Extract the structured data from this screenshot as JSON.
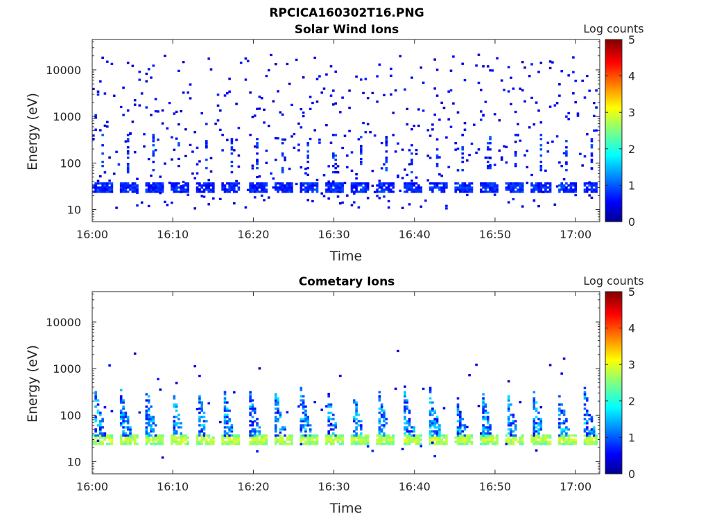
{
  "figure_title": "RPCICA160302T16.PNG",
  "chart_data": [
    {
      "type": "heatmap",
      "title": "Solar Wind Ions",
      "xlabel": "Time",
      "ylabel": "Energy (eV)",
      "y_scale": "log",
      "ylim": [
        5.5,
        45000
      ],
      "xlim": [
        "16:00",
        "17:03"
      ],
      "x_ticks": [
        "16:00",
        "16:10",
        "16:20",
        "16:30",
        "16:40",
        "16:50",
        "17:00"
      ],
      "y_ticks": [
        "10",
        "100",
        "1000",
        "10000"
      ],
      "colorbar": {
        "label": "Log counts",
        "range": [
          0,
          5
        ],
        "ticks": [
          "0",
          "1",
          "2",
          "3",
          "4",
          "5"
        ],
        "colormap": "jet"
      },
      "pattern": {
        "band_energy_center": 28,
        "band_log_counts": 0.8,
        "sweep_period_min": 3.2,
        "background": "sparse single counts (log counts ~0.3-0.8) scattered across 10-20000 eV",
        "seed": 7
      }
    },
    {
      "type": "heatmap",
      "title": "Cometary Ions",
      "xlabel": "Time",
      "ylabel": "Energy (eV)",
      "y_scale": "log",
      "ylim": [
        5.5,
        45000
      ],
      "xlim": [
        "16:00",
        "17:03"
      ],
      "x_ticks": [
        "16:00",
        "16:10",
        "16:20",
        "16:30",
        "16:40",
        "16:50",
        "17:00"
      ],
      "y_ticks": [
        "10",
        "100",
        "1000",
        "10000"
      ],
      "colorbar": {
        "label": "Log counts",
        "range": [
          0,
          5
        ],
        "ticks": [
          "0",
          "1",
          "2",
          "3",
          "4",
          "5"
        ],
        "colormap": "jet"
      },
      "pattern": {
        "band_energy_center": 28,
        "band_log_counts": 2.3,
        "sweep_period_min": 3.2,
        "plume_max_energy": 400,
        "background": "sparse single counts up to ~2500 eV",
        "seed": 13
      }
    }
  ]
}
